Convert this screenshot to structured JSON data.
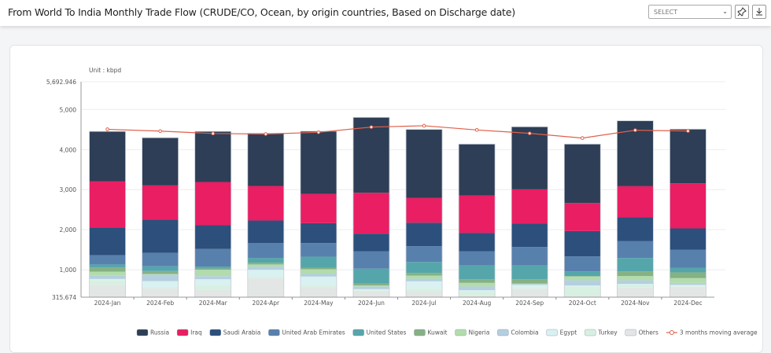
{
  "header": {
    "title": "From World To India Monthly Trade Flow (CRUDE/CO, Ocean, by origin countries, Based on Discharge date)",
    "select_value": "SELECT",
    "pin_icon": "pin-icon",
    "download_icon": "download-icon"
  },
  "chart_data": {
    "type": "bar",
    "stacked": true,
    "title": "",
    "unit_label": "Unit : kbpd",
    "ylim": [
      315.674,
      5692.946
    ],
    "yticks": [
      "315.674",
      "1,000",
      "2,000",
      "3,000",
      "4,000",
      "5,000",
      "5,692.946"
    ],
    "ytick_values": [
      315.674,
      1000,
      2000,
      3000,
      4000,
      5000,
      5692.946
    ],
    "grid": true,
    "legend_position": "bottom",
    "categories": [
      "2024-Jan",
      "2024-Feb",
      "2024-Mar",
      "2024-Apr",
      "2024-May",
      "2024-Jun",
      "2024-Jul",
      "2024-Aug",
      "2024-Sep",
      "2024-Oct",
      "2024-Nov",
      "2024-Dec"
    ],
    "series": [
      {
        "name": "Others",
        "color": "#e2e6e5",
        "values": [
          625,
          539,
          493,
          790,
          569,
          477,
          464,
          350,
          529,
          346,
          556,
          575
        ]
      },
      {
        "name": "Turkey",
        "color": "#d8f0e2",
        "values": [
          118,
          33,
          119,
          26,
          39,
          13,
          65,
          121,
          14,
          236,
          65,
          20
        ]
      },
      {
        "name": "Egypt",
        "color": "#d9f1f1",
        "values": [
          27,
          145,
          151,
          184,
          222,
          26,
          183,
          19,
          78,
          26,
          26,
          26
        ]
      },
      {
        "name": "Colombia",
        "color": "#b4cfdf",
        "values": [
          79,
          165,
          79,
          79,
          65,
          66,
          66,
          92,
          20,
          131,
          92,
          52
        ]
      },
      {
        "name": "Nigeria",
        "color": "#b2dcab",
        "values": [
          105,
          13,
          158,
          53,
          118,
          26,
          78,
          91,
          13,
          91,
          104,
          118
        ]
      },
      {
        "name": "Kuwait",
        "color": "#86b184",
        "values": [
          105,
          72,
          33,
          46,
          39,
          52,
          66,
          92,
          111,
          13,
          118,
          144
        ]
      },
      {
        "name": "United States",
        "color": "#55a6aa",
        "values": [
          73,
          119,
          46,
          118,
          275,
          366,
          274,
          340,
          340,
          118,
          333,
          117
        ]
      },
      {
        "name": "United Arab Emirates",
        "color": "#5880ad",
        "values": [
          230,
          335,
          441,
          368,
          340,
          432,
          392,
          353,
          464,
          372,
          425,
          445
        ]
      },
      {
        "name": "Saudi Arabia",
        "color": "#2c4f7c",
        "values": [
          697,
          829,
          592,
          566,
          496,
          444,
          588,
          464,
          581,
          634,
          588,
          536
        ]
      },
      {
        "name": "Iraq",
        "color": "#e91e63",
        "values": [
          1151,
          855,
          1079,
          862,
          732,
          1020,
          615,
          934,
          857,
          700,
          778,
          1124
        ]
      },
      {
        "name": "Russia",
        "color": "#2d3e56",
        "values": [
          1244,
          1191,
          1263,
          1316,
          1563,
          1882,
          1712,
          1281,
          1562,
          1470,
          1634,
          1353
        ]
      }
    ],
    "line": {
      "name": "3 months moving average",
      "color": "#e0604a",
      "values": [
        4507,
        4461,
        4401,
        4388,
        4431,
        4562,
        4595,
        4490,
        4405,
        4288,
        4484,
        4464
      ]
    },
    "legend_order": [
      "Russia",
      "Iraq",
      "Saudi Arabia",
      "United Arab Emirates",
      "United States",
      "Kuwait",
      "Nigeria",
      "Colombia",
      "Egypt",
      "Turkey",
      "Others",
      "3 months moving average"
    ]
  }
}
